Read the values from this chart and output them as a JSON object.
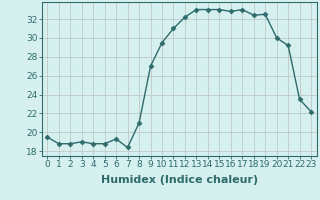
{
  "x": [
    0,
    1,
    2,
    3,
    4,
    5,
    6,
    7,
    8,
    9,
    10,
    11,
    12,
    13,
    14,
    15,
    16,
    17,
    18,
    19,
    20,
    21,
    22,
    23
  ],
  "y": [
    19.5,
    18.8,
    18.8,
    19.0,
    18.8,
    18.8,
    19.3,
    18.4,
    21.0,
    27.0,
    29.5,
    31.0,
    32.2,
    33.0,
    33.0,
    33.0,
    32.8,
    33.0,
    32.4,
    32.5,
    30.0,
    29.2,
    23.5,
    22.2
  ],
  "line_color": "#2e6b6b",
  "marker": "D",
  "marker_size": 2.5,
  "bg_color": "#d6f0f0",
  "grid_color": "#c0c8c8",
  "xlabel": "Humidex (Indice chaleur)",
  "xlabel_fontsize": 8,
  "ylim": [
    17.5,
    33.8
  ],
  "xlim": [
    -0.5,
    23.5
  ],
  "yticks": [
    18,
    20,
    22,
    24,
    26,
    28,
    30,
    32
  ],
  "xticks": [
    0,
    1,
    2,
    3,
    4,
    5,
    6,
    7,
    8,
    9,
    10,
    11,
    12,
    13,
    14,
    15,
    16,
    17,
    18,
    19,
    20,
    21,
    22,
    23
  ],
  "tick_fontsize": 6.5,
  "line_width": 1.0
}
